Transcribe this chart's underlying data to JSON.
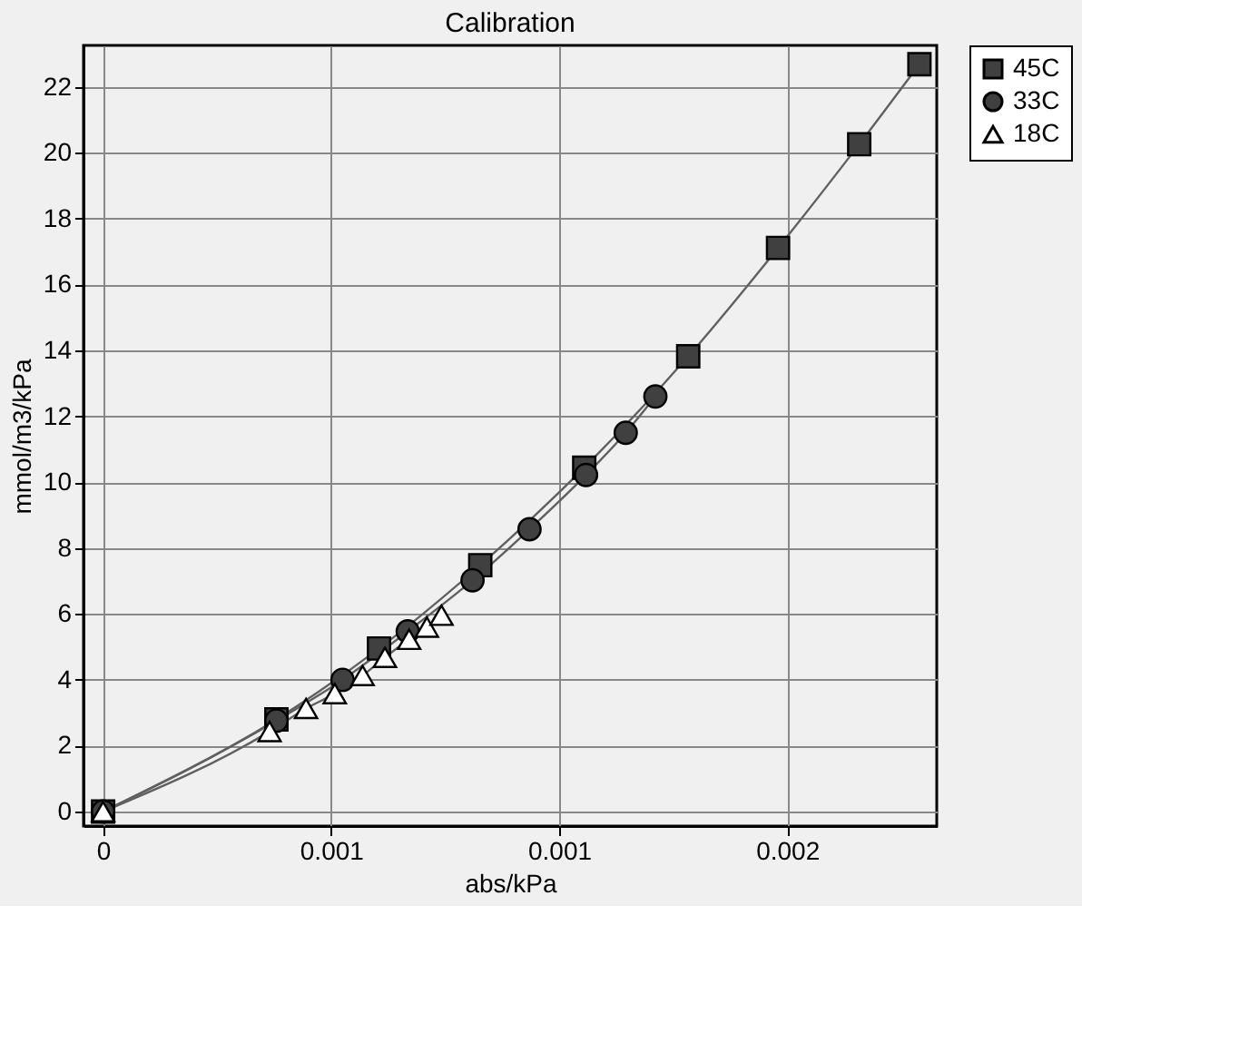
{
  "chart_data": {
    "type": "line",
    "title": "Calibration",
    "xlabel": "abs/kPa",
    "ylabel": "mmol/m3/kPa",
    "xlim": [
      -4.3e-05,
      0.001828
    ],
    "ylim": [
      -0.44,
      23.26
    ],
    "xticks": [
      {
        "value": 0,
        "label": "0"
      },
      {
        "value": 0.0005,
        "label": "0.001"
      },
      {
        "value": 0.001,
        "label": "0.001"
      },
      {
        "value": 0.0015,
        "label": "0.002"
      }
    ],
    "yticks": [
      0,
      2,
      4,
      6,
      8,
      10,
      12,
      14,
      16,
      18,
      20,
      22
    ],
    "grid": true,
    "legend": "top right",
    "series": [
      {
        "name": "45C",
        "color": "#404040",
        "marker": "square",
        "x": [
          0,
          0.00038,
          0.000605,
          0.000827,
          0.001055,
          0.001283,
          0.00148,
          0.001658,
          0.00179
        ],
        "values": [
          0,
          2.8,
          4.95,
          7.48,
          10.44,
          13.82,
          17.11,
          20.26,
          22.69
        ]
      },
      {
        "name": "33C",
        "color": "#404040",
        "marker": "circle",
        "x": [
          0,
          0.00038,
          0.000525,
          0.000668,
          0.00081,
          0.000935,
          0.001059,
          0.001146,
          0.001211
        ],
        "values": [
          0,
          2.76,
          4.0,
          5.47,
          7.02,
          8.57,
          10.22,
          11.5,
          12.6
        ]
      },
      {
        "name": "18C",
        "color": "#ffffff",
        "marker": "triangle",
        "x": [
          0,
          0.000365,
          0.000445,
          0.000508,
          0.000569,
          0.000618,
          0.000671,
          0.00071,
          0.000742
        ],
        "values": [
          0,
          2.43,
          3.13,
          3.58,
          4.13,
          4.68,
          5.23,
          5.6,
          5.96
        ]
      }
    ]
  }
}
